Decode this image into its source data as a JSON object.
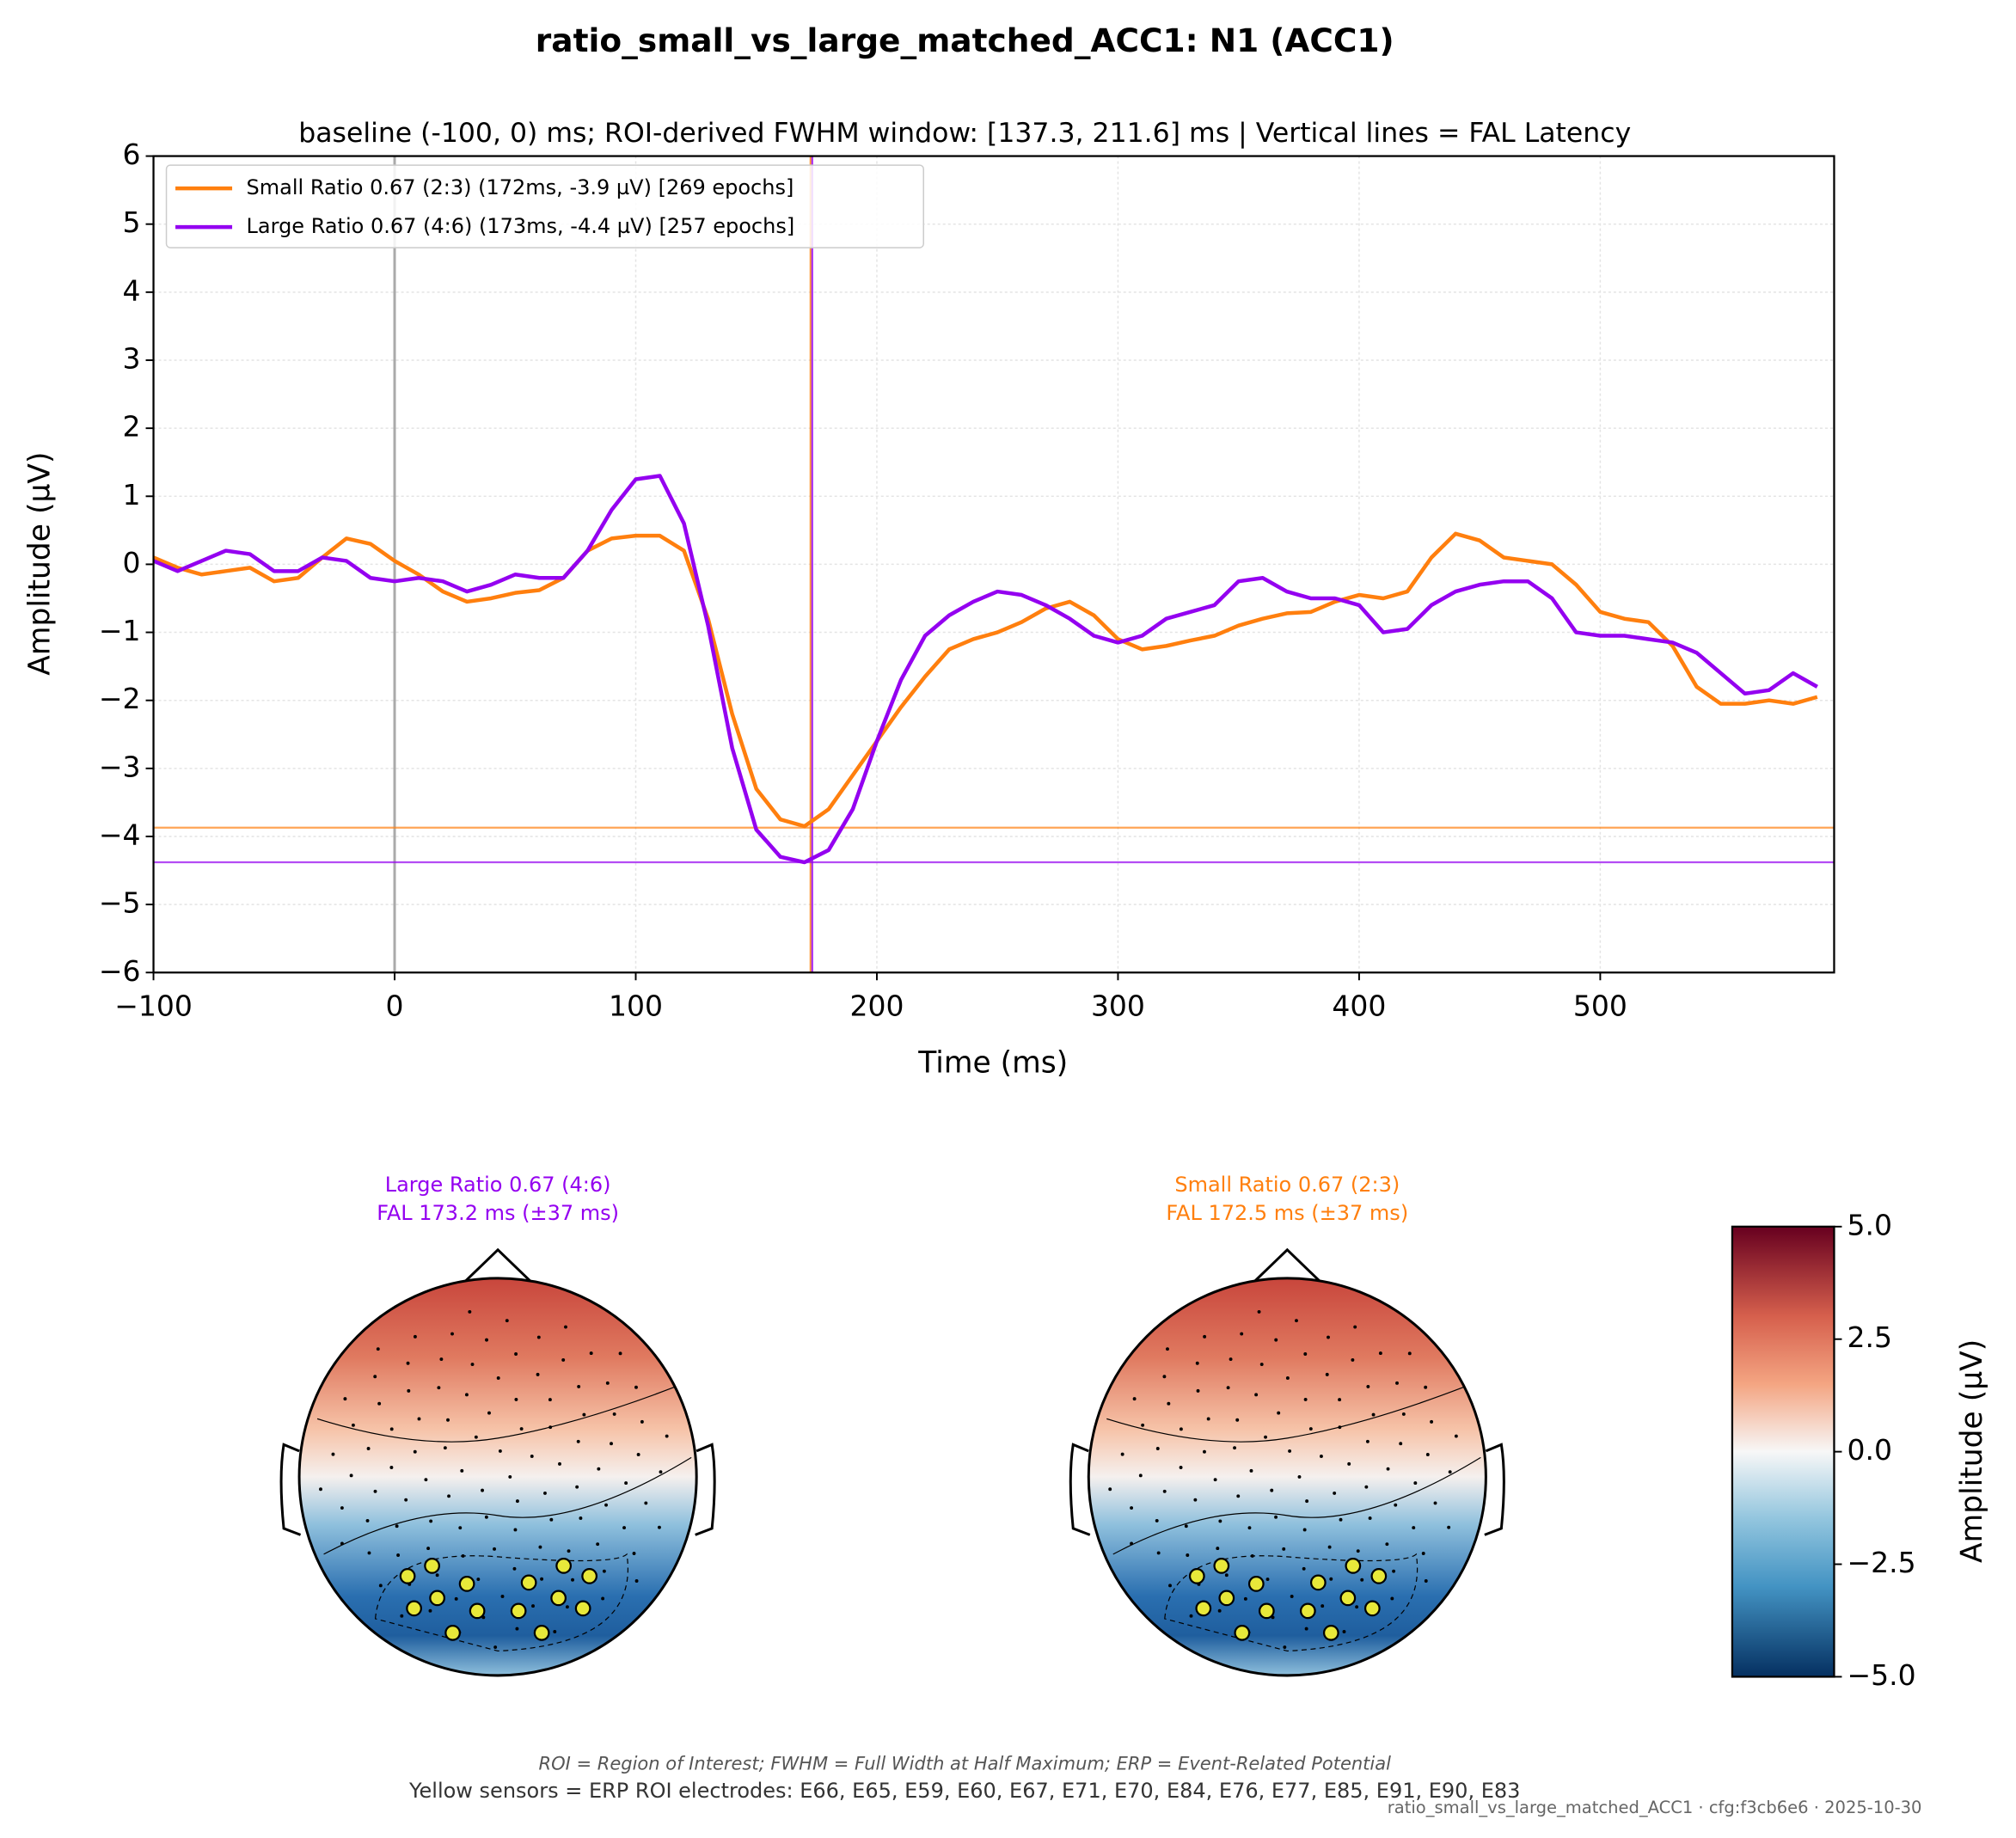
{
  "chart_data": {
    "type": "line",
    "title": "ratio_small_vs_large_matched_ACC1: N1 (ACC1)",
    "subtitle": "baseline (-100, 0) ms; ROI-derived FWHM window: [137.3, 211.6] ms | Vertical lines = FAL Latency",
    "xlabel": "Time (ms)",
    "ylabel": "Amplitude (µV)",
    "x": [
      -100,
      -90,
      -80,
      -70,
      -60,
      -50,
      -40,
      -30,
      -20,
      -10,
      0,
      10,
      20,
      30,
      40,
      50,
      60,
      70,
      80,
      90,
      100,
      110,
      120,
      130,
      140,
      150,
      160,
      170,
      180,
      190,
      200,
      210,
      220,
      230,
      240,
      250,
      260,
      270,
      280,
      290,
      300,
      310,
      320,
      330,
      340,
      350,
      360,
      370,
      380,
      390,
      400,
      410,
      420,
      430,
      440,
      450,
      460,
      470,
      480,
      490,
      500,
      510,
      520,
      530,
      540,
      550,
      560,
      570,
      580,
      590
    ],
    "xlim": [
      -100,
      597
    ],
    "xticks": [
      {
        "value": -100,
        "label": "−100"
      },
      0,
      100,
      200,
      300,
      400,
      500
    ],
    "ylim": [
      -6,
      6
    ],
    "yticks": [
      {
        "value": -6,
        "label": "−6"
      },
      {
        "value": -5,
        "label": "−5"
      },
      {
        "value": -4,
        "label": "−4"
      },
      {
        "value": -3,
        "label": "−3"
      },
      {
        "value": -2,
        "label": "−2"
      },
      {
        "value": -1,
        "label": "−1"
      },
      0,
      1,
      2,
      3,
      4,
      5,
      6
    ],
    "grid": true,
    "legend": "upper left",
    "onset_line": 0,
    "series": [
      {
        "name": "Small Ratio 0.67 (2:3) (172ms, -3.9 µV) [269 epochs]",
        "color": "#ff7f0e",
        "fal": 172.5,
        "peak": -3.87,
        "values": [
          0.1,
          -0.05,
          -0.15,
          -0.1,
          -0.05,
          -0.25,
          -0.2,
          0.1,
          0.38,
          0.3,
          0.05,
          -0.15,
          -0.4,
          -0.55,
          -0.5,
          -0.42,
          -0.38,
          -0.2,
          0.2,
          0.38,
          0.42,
          0.42,
          0.2,
          -0.8,
          -2.2,
          -3.3,
          -3.75,
          -3.85,
          -3.6,
          -3.1,
          -2.6,
          -2.1,
          -1.65,
          -1.25,
          -1.1,
          -1.0,
          -0.85,
          -0.65,
          -0.55,
          -0.75,
          -1.1,
          -1.25,
          -1.2,
          -1.12,
          -1.05,
          -0.9,
          -0.8,
          -0.72,
          -0.7,
          -0.55,
          -0.45,
          -0.5,
          -0.4,
          0.1,
          0.45,
          0.35,
          0.1,
          0.05,
          0.0,
          -0.3,
          -0.7,
          -0.8,
          -0.85,
          -1.2,
          -1.8,
          -2.05,
          -2.05,
          -2.0,
          -2.05,
          -1.95
        ]
      },
      {
        "name": "Large Ratio 0.67 (4:6) (173ms, -4.4 µV) [257 epochs]",
        "color": "#9400f0",
        "fal": 173.2,
        "peak": -4.38,
        "values": [
          0.05,
          -0.1,
          0.05,
          0.2,
          0.15,
          -0.1,
          -0.1,
          0.1,
          0.05,
          -0.2,
          -0.25,
          -0.2,
          -0.25,
          -0.4,
          -0.3,
          -0.15,
          -0.2,
          -0.2,
          0.2,
          0.8,
          1.25,
          1.3,
          0.6,
          -0.9,
          -2.7,
          -3.9,
          -4.3,
          -4.38,
          -4.2,
          -3.6,
          -2.6,
          -1.7,
          -1.05,
          -0.75,
          -0.55,
          -0.4,
          -0.45,
          -0.6,
          -0.8,
          -1.05,
          -1.15,
          -1.05,
          -0.8,
          -0.7,
          -0.6,
          -0.25,
          -0.2,
          -0.4,
          -0.5,
          -0.5,
          -0.6,
          -1.0,
          -0.95,
          -0.6,
          -0.4,
          -0.3,
          -0.25,
          -0.25,
          -0.5,
          -1.0,
          -1.05,
          -1.05,
          -1.1,
          -1.15,
          -1.3,
          -1.6,
          -1.9,
          -1.85,
          -1.6,
          -1.8
        ]
      }
    ]
  },
  "topomaps": [
    {
      "lines": [
        "Large Ratio 0.67 (4:6)",
        "FAL 173.2 ms (±37 ms)"
      ],
      "color": "#9400f0"
    },
    {
      "lines": [
        "Small Ratio 0.67 (2:3)",
        "FAL 172.5 ms (±37 ms)"
      ],
      "color": "#ff7f0e"
    }
  ],
  "colorbar": {
    "label": "Amplitude (µV)",
    "lim": [
      -5,
      5
    ],
    "ticks": [
      {
        "value": 5,
        "label": "5.0"
      },
      {
        "value": 2.5,
        "label": "2.5"
      },
      {
        "value": 0,
        "label": "0.0"
      },
      {
        "value": -2.5,
        "label": "−2.5"
      },
      {
        "value": -5,
        "label": "−5.0"
      }
    ]
  },
  "footer": {
    "note": "ROI = Region of Interest; FWHM = Full Width at Half Maximum; ERP = Event-Related Potential",
    "roi": "Yellow sensors = ERP ROI electrodes: E66, E65, E59, E60, E67, E71, E70, E84, E76, E77, E85, E91, E90, E83",
    "stamp": "ratio_small_vs_large_matched_ACC1 · cfg:f3cb6e6 · 2025-10-30"
  }
}
